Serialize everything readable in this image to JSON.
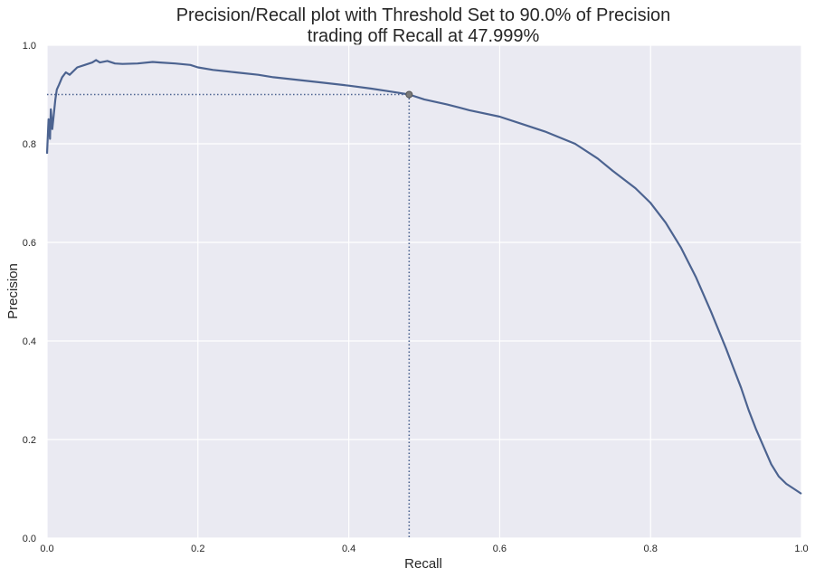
{
  "chart_data": {
    "type": "line",
    "title_lines": [
      "Precision/Recall plot with Threshold Set to 90.0% of Precision",
      "trading off Recall at 47.999%"
    ],
    "xlabel": "Recall",
    "ylabel": "Precision",
    "xlim": [
      0,
      1
    ],
    "ylim": [
      0,
      1
    ],
    "xticks": [
      0.0,
      0.2,
      0.4,
      0.6,
      0.8,
      1.0
    ],
    "yticks": [
      0.0,
      0.2,
      0.4,
      0.6,
      0.8,
      1.0
    ],
    "x_tick_labels": [
      "0.0",
      "0.2",
      "0.4",
      "0.6",
      "0.8",
      "1.0"
    ],
    "y_tick_labels": [
      "0.0",
      "0.2",
      "0.4",
      "0.6",
      "0.8",
      "1.0"
    ],
    "grid": true,
    "colors": {
      "background": "#eaeaf2",
      "grid": "#ffffff",
      "line": "#4c6390",
      "marker": "#7a7a7a"
    },
    "series": [
      {
        "x": [
          0.0,
          0.002,
          0.004,
          0.005,
          0.007,
          0.009,
          0.011,
          0.013,
          0.016,
          0.02,
          0.025,
          0.03,
          0.04,
          0.05,
          0.06,
          0.065,
          0.07,
          0.08,
          0.09,
          0.1,
          0.12,
          0.14,
          0.15,
          0.17,
          0.19,
          0.2,
          0.22,
          0.25,
          0.28,
          0.3,
          0.33,
          0.36,
          0.4,
          0.43,
          0.46,
          0.48,
          0.5,
          0.53,
          0.56,
          0.6,
          0.63,
          0.66,
          0.7,
          0.73,
          0.75,
          0.78,
          0.8,
          0.82,
          0.84,
          0.86,
          0.88,
          0.9,
          0.91,
          0.92,
          0.93,
          0.94,
          0.95,
          0.96,
          0.97,
          0.98,
          0.99,
          1.0
        ],
        "y": [
          0.78,
          0.85,
          0.81,
          0.87,
          0.83,
          0.86,
          0.89,
          0.91,
          0.92,
          0.935,
          0.945,
          0.94,
          0.955,
          0.96,
          0.965,
          0.97,
          0.965,
          0.968,
          0.963,
          0.962,
          0.963,
          0.966,
          0.965,
          0.963,
          0.96,
          0.955,
          0.95,
          0.945,
          0.94,
          0.935,
          0.93,
          0.925,
          0.918,
          0.912,
          0.905,
          0.9,
          0.89,
          0.88,
          0.868,
          0.855,
          0.84,
          0.825,
          0.8,
          0.77,
          0.745,
          0.71,
          0.68,
          0.64,
          0.59,
          0.53,
          0.46,
          0.385,
          0.345,
          0.305,
          0.26,
          0.22,
          0.185,
          0.15,
          0.125,
          0.11,
          0.1,
          0.09
        ]
      }
    ],
    "threshold_point": {
      "x": 0.48,
      "y": 0.9
    }
  }
}
